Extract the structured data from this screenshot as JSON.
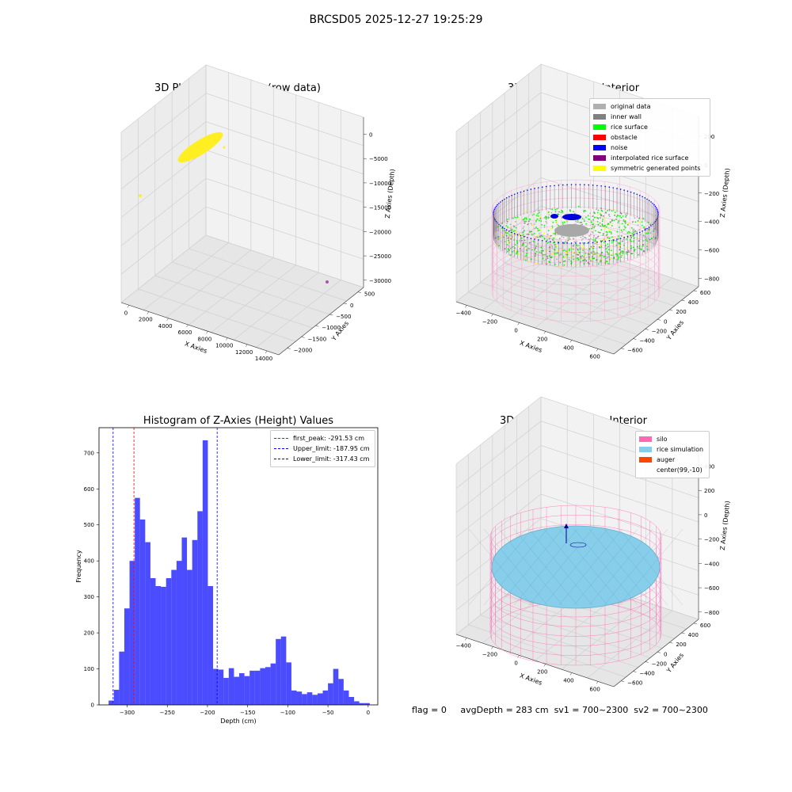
{
  "suptitle": "BRCSD05 2025-12-27 19:25:29",
  "panels": {
    "raw": {
      "title": "3D Plot of Silo Interior(row data)",
      "xlabel": "X Axies",
      "ylabel": "Y Axies",
      "zlabel": "Z Axies (Depth)",
      "xticks": [
        "0",
        "2000",
        "4000",
        "6000",
        "8000",
        "10000",
        "12000",
        "14000"
      ],
      "yticks": [
        "500",
        "0",
        "−500",
        "−1000",
        "−1500",
        "−2000"
      ],
      "zticks": [
        "0",
        "−5000",
        "−10000",
        "−15000",
        "−20000",
        "−25000",
        "−30000"
      ]
    },
    "classify": {
      "title": "3D classify of Silo Interior",
      "xlabel": "X Axies",
      "ylabel": "Y Axies",
      "zlabel": "Z Axies (Depth)",
      "xticks": [
        "−400",
        "−200",
        "0",
        "200",
        "400",
        "600"
      ],
      "yticks": [
        "600",
        "400",
        "200",
        "0",
        "−200",
        "−400",
        "−600"
      ],
      "zticks": [
        "200",
        "0",
        "−200",
        "−400",
        "−600",
        "−800"
      ],
      "legend": [
        {
          "label": "original data",
          "color": "#b0b0b0"
        },
        {
          "label": "inner wall",
          "color": "#808080"
        },
        {
          "label": "rice surface",
          "color": "#00ff00"
        },
        {
          "label": "obstacle",
          "color": "#ff0000"
        },
        {
          "label": "noise",
          "color": "#0000ff"
        },
        {
          "label": "interpolated rice surface",
          "color": "#800080"
        },
        {
          "label": "symmetric generated points",
          "color": "#ffff00"
        }
      ]
    },
    "simulation": {
      "title": "3D simulation of Silo Interior",
      "xlabel": "X Axies",
      "ylabel": "Y Axies",
      "zlabel": "Z Axies (Depth)",
      "xticks": [
        "−400",
        "−200",
        "0",
        "200",
        "400",
        "600"
      ],
      "yticks": [
        "600",
        "400",
        "200",
        "0",
        "−200",
        "−400",
        "−600"
      ],
      "zticks": [
        "400",
        "200",
        "0",
        "−200",
        "−400",
        "−600",
        "−800"
      ],
      "legend": [
        {
          "label": "silo",
          "color": "#ff69b4"
        },
        {
          "label": "rice simulation",
          "color": "#87ceeb"
        },
        {
          "label": "auger",
          "color": "#ff4500"
        },
        {
          "label": "center(99,-10)",
          "color": ""
        }
      ]
    }
  },
  "chart_data": {
    "type": "bar",
    "title": "Histogram of Z-Axies (Height) Values",
    "xlabel": "Depth (cm)",
    "ylabel": "Frequency",
    "xlim": [
      -335,
      12
    ],
    "ylim": [
      0,
      770
    ],
    "xticks": [
      "−300",
      "−250",
      "−200",
      "−150",
      "−100",
      "−50",
      "0"
    ],
    "xtick_values": [
      -300,
      -250,
      -200,
      -150,
      -100,
      -50,
      0
    ],
    "yticks": [
      "0",
      "100",
      "200",
      "300",
      "400",
      "500",
      "600",
      "700"
    ],
    "ytick_values": [
      0,
      100,
      200,
      300,
      400,
      500,
      600,
      700
    ],
    "bin_start": -323,
    "bin_width": 6.5,
    "values": [
      12,
      42,
      148,
      268,
      400,
      575,
      515,
      452,
      352,
      330,
      328,
      352,
      375,
      400,
      465,
      375,
      458,
      538,
      735,
      330,
      100,
      98,
      75,
      102,
      78,
      88,
      80,
      95,
      95,
      102,
      105,
      115,
      183,
      190,
      118,
      40,
      37,
      30,
      35,
      28,
      32,
      40,
      60,
      100,
      72,
      40,
      22,
      10,
      5,
      5
    ],
    "lines": [
      {
        "label": "first_peak: -291.53 cm",
        "x": -291.53,
        "color": "#ff0000"
      },
      {
        "label": "Upper_limit: -187.95 cm",
        "x": -187.95,
        "color": "#0000ff"
      },
      {
        "label": "Lower_limit: -317.43 cm",
        "x": -317.43,
        "color": "#0000ff"
      }
    ],
    "bar_color": "#0000ff",
    "legend_position": "upper right"
  },
  "status": {
    "flag": "flag = 0",
    "avg_depth": "avgDepth = 283 cm",
    "sv1": "sv1 = 700~2300",
    "sv2": "sv2 = 700~2300"
  }
}
